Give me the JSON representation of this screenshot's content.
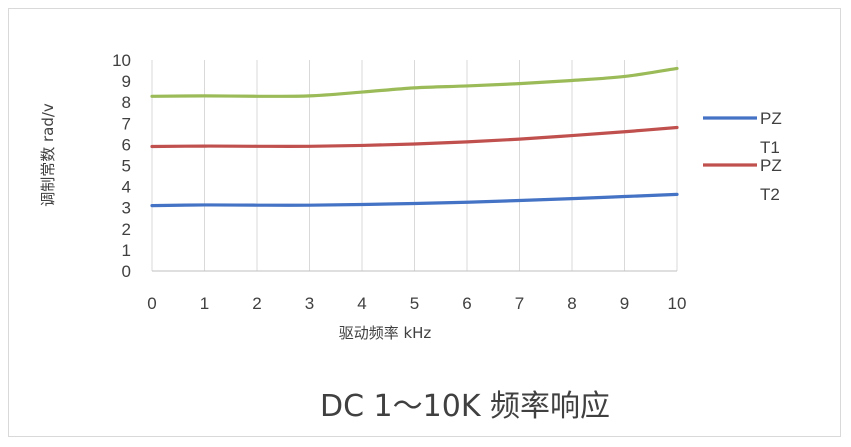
{
  "chart_data": {
    "type": "line",
    "title": "DC 1～10K 频率响应",
    "xlabel": "驱动频率  kHz",
    "ylabel": "调制常数   rad/v",
    "x": [
      0,
      1,
      2,
      3,
      4,
      5,
      6,
      7,
      8,
      9,
      10
    ],
    "xticks": [
      "0",
      "1",
      "2",
      "3",
      "4",
      "5",
      "6",
      "7",
      "8",
      "9",
      "10"
    ],
    "yticks": [
      "0",
      "1",
      "2",
      "3",
      "4",
      "5",
      "6",
      "7",
      "8",
      "9",
      "10"
    ],
    "xlim": [
      0,
      10
    ],
    "ylim": [
      0,
      10
    ],
    "grid": "vertical",
    "legend_position": "right",
    "series": [
      {
        "name": "PZT1",
        "legend_lines": [
          "PZ",
          "T1"
        ],
        "color": "#4472c4",
        "values": [
          3.1,
          3.13,
          3.12,
          3.12,
          3.15,
          3.2,
          3.26,
          3.34,
          3.43,
          3.53,
          3.63
        ]
      },
      {
        "name": "PZT2",
        "legend_lines": [
          "PZ",
          "T2"
        ],
        "color": "#c0504d",
        "values": [
          5.9,
          5.92,
          5.91,
          5.91,
          5.95,
          6.02,
          6.12,
          6.25,
          6.42,
          6.6,
          6.8
        ]
      },
      {
        "color": "#9bbb59",
        "values": [
          8.28,
          8.3,
          8.28,
          8.3,
          8.48,
          8.68,
          8.77,
          8.88,
          9.03,
          9.22,
          9.6
        ]
      }
    ]
  }
}
